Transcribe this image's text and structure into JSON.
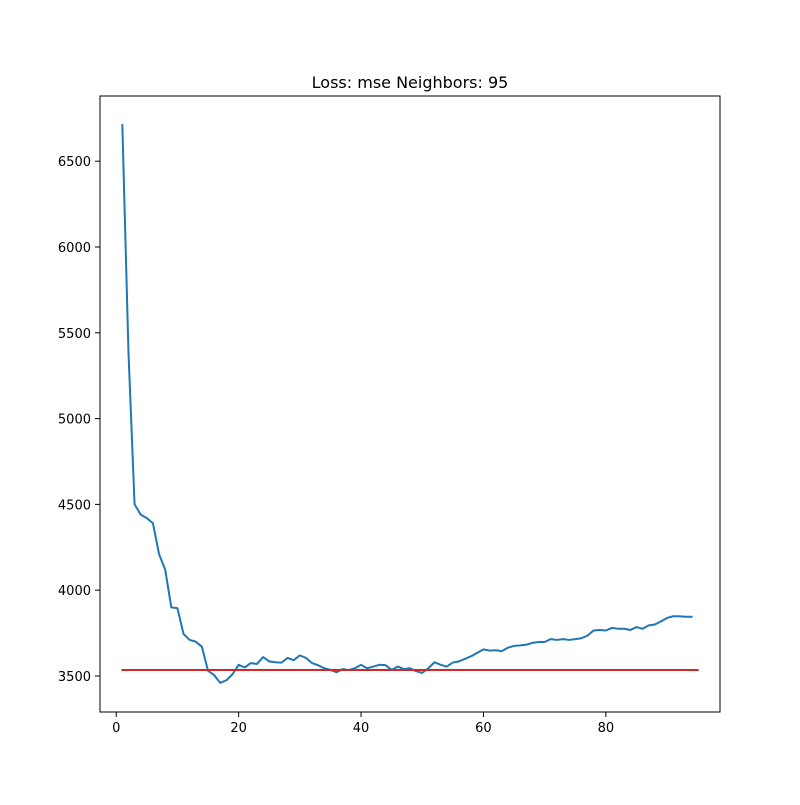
{
  "chart_data": {
    "type": "line",
    "title": "Loss: mse Neighbors: 95",
    "xlabel": "",
    "ylabel": "",
    "xlim": [
      -2.65,
      98.65
    ],
    "ylim": [
      3290,
      6880
    ],
    "xticks": [
      0,
      20,
      40,
      60,
      80
    ],
    "yticks": [
      3500,
      4000,
      4500,
      5000,
      5500,
      6000,
      6500
    ],
    "grid": false,
    "legend": "none",
    "series": [
      {
        "color": "#1f77b4",
        "x": [
          1,
          2,
          3,
          4,
          5,
          6,
          7,
          8,
          9,
          10,
          11,
          12,
          13,
          14,
          15,
          16,
          17,
          18,
          19,
          20,
          21,
          22,
          23,
          24,
          25,
          26,
          27,
          28,
          29,
          30,
          31,
          32,
          33,
          34,
          35,
          36,
          37,
          38,
          39,
          40,
          41,
          42,
          43,
          44,
          45,
          46,
          47,
          48,
          49,
          50,
          51,
          52,
          53,
          54,
          55,
          56,
          57,
          58,
          59,
          60,
          61,
          62,
          63,
          64,
          65,
          66,
          67,
          68,
          69,
          70,
          71,
          72,
          73,
          74,
          75,
          76,
          77,
          78,
          79,
          80,
          81,
          82,
          83,
          84,
          85,
          86,
          87,
          88,
          89,
          90,
          91,
          92,
          93,
          94
        ],
        "y": [
          6710,
          5390,
          4500,
          4440,
          4420,
          4390,
          4210,
          4120,
          3900,
          3895,
          3745,
          3710,
          3700,
          3670,
          3530,
          3505,
          3460,
          3475,
          3510,
          3565,
          3550,
          3575,
          3570,
          3610,
          3585,
          3580,
          3578,
          3605,
          3592,
          3620,
          3605,
          3575,
          3562,
          3545,
          3535,
          3522,
          3540,
          3534,
          3545,
          3565,
          3545,
          3555,
          3565,
          3563,
          3535,
          3555,
          3540,
          3545,
          3528,
          3518,
          3545,
          3580,
          3565,
          3555,
          3578,
          3585,
          3600,
          3615,
          3635,
          3655,
          3648,
          3650,
          3645,
          3665,
          3675,
          3678,
          3682,
          3693,
          3698,
          3698,
          3715,
          3710,
          3715,
          3710,
          3715,
          3720,
          3735,
          3765,
          3768,
          3765,
          3780,
          3775,
          3775,
          3768,
          3785,
          3775,
          3795,
          3800,
          3818,
          3838,
          3848,
          3848,
          3845,
          3845
        ]
      },
      {
        "color": "#d62728",
        "x": [
          1,
          95
        ],
        "y": [
          3535,
          3535
        ]
      }
    ]
  }
}
